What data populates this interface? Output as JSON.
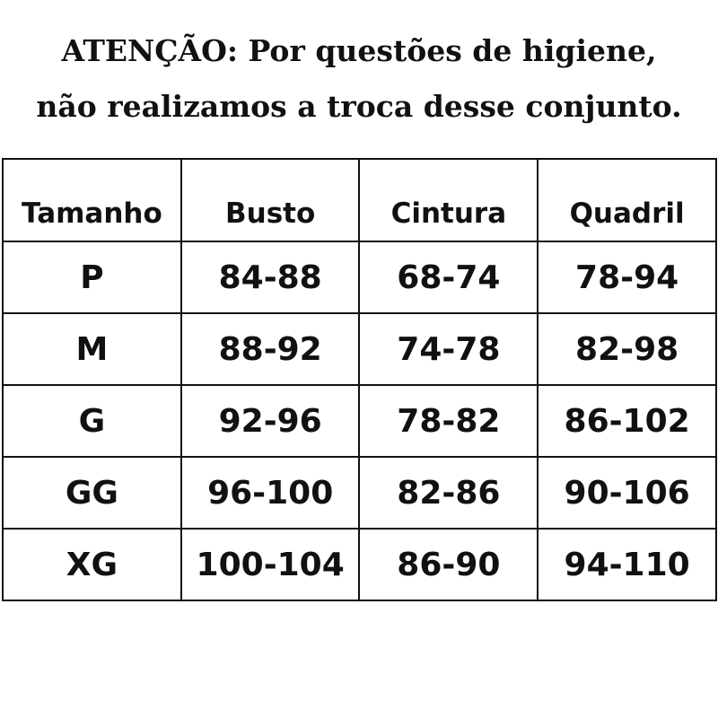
{
  "notice": {
    "line1": "ATENÇÃO: Por questões de higiene,",
    "line2": "não realizamos a troca desse conjunto."
  },
  "size_table": {
    "headers": [
      "Tamanho",
      "Busto",
      "Cintura",
      "Quadril"
    ],
    "rows": [
      [
        "P",
        "84-88",
        "68-74",
        "78-94"
      ],
      [
        "M",
        "88-92",
        "74-78",
        "82-98"
      ],
      [
        "G",
        "92-96",
        "78-82",
        "86-102"
      ],
      [
        "GG",
        "96-100",
        "82-86",
        "90-106"
      ],
      [
        "XG",
        "100-104",
        "86-90",
        "94-110"
      ]
    ]
  }
}
